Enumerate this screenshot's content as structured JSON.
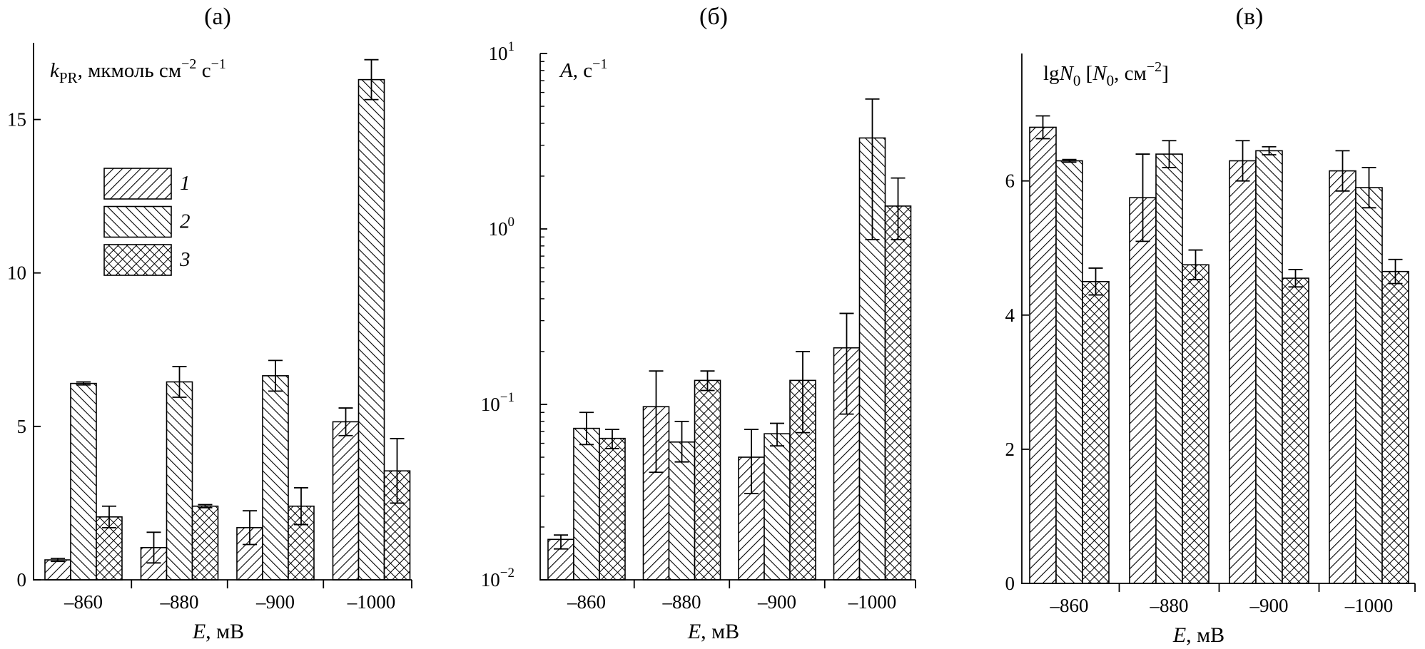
{
  "chart_data": [
    {
      "type": "bar",
      "panel_label": "(а)",
      "title": "",
      "ylabel": "kPR, мкмоль см−2 с−1",
      "ylabel_parts": {
        "k": "k",
        "sub": "PR",
        "rest": ", мкмоль см",
        "exp1": "−2",
        "mid": " с",
        "exp2": "−1"
      },
      "xlabel": "E, мВ",
      "xlabel_parts": {
        "var": "E",
        "rest": ", мВ"
      },
      "categories": [
        "–860",
        "–880",
        "–900",
        "–1000"
      ],
      "ylim": [
        0,
        17.5
      ],
      "yscale": "linear",
      "yticks": [
        0,
        5,
        10,
        15
      ],
      "ytick_labels": [
        "0",
        "5",
        "10",
        "15"
      ],
      "legend": {
        "position": "upper-left",
        "entries": [
          "1",
          "2",
          "3"
        ]
      },
      "series": [
        {
          "name": "1",
          "pattern": "hatch-right",
          "values": [
            0.65,
            1.05,
            1.7,
            5.15
          ],
          "errors": [
            0.05,
            0.5,
            0.55,
            0.45
          ]
        },
        {
          "name": "2",
          "pattern": "hatch-left",
          "values": [
            6.4,
            6.45,
            6.65,
            16.3
          ],
          "errors": [
            0.05,
            0.5,
            0.5,
            0.65
          ]
        },
        {
          "name": "3",
          "pattern": "crosshatch",
          "values": [
            2.05,
            2.4,
            2.4,
            3.55
          ],
          "errors": [
            0.35,
            0.05,
            0.6,
            1.05
          ]
        }
      ]
    },
    {
      "type": "bar",
      "panel_label": "(б)",
      "title": "",
      "ylabel": "A, с−1",
      "ylabel_parts": {
        "var": "A",
        "rest": ", с",
        "exp": "−1"
      },
      "xlabel": "E, мВ",
      "xlabel_parts": {
        "var": "E",
        "rest": ", мВ"
      },
      "categories": [
        "–860",
        "–880",
        "–900",
        "–1000"
      ],
      "ylim": [
        0.01,
        10
      ],
      "yscale": "log",
      "yticks": [
        0.01,
        0.1,
        1,
        10
      ],
      "ytick_labels": [
        {
          "base": "10",
          "exp": "−2"
        },
        {
          "base": "10",
          "exp": "−1"
        },
        {
          "base": "10",
          "exp": "0"
        },
        {
          "base": "10",
          "exp": "1"
        }
      ],
      "series": [
        {
          "name": "1",
          "pattern": "hatch-right",
          "values": [
            0.017,
            0.097,
            0.05,
            0.21
          ],
          "err_high": [
            0.018,
            0.155,
            0.072,
            0.33
          ],
          "err_low": [
            0.015,
            0.041,
            0.031,
            0.088
          ]
        },
        {
          "name": "2",
          "pattern": "hatch-left",
          "values": [
            0.073,
            0.061,
            0.068,
            3.3
          ],
          "err_high": [
            0.09,
            0.08,
            0.078,
            5.5
          ],
          "err_low": [
            0.059,
            0.047,
            0.058,
            0.87
          ]
        },
        {
          "name": "3",
          "pattern": "crosshatch",
          "values": [
            0.064,
            0.137,
            0.137,
            1.35
          ],
          "err_high": [
            0.072,
            0.155,
            0.2,
            1.95
          ],
          "err_low": [
            0.056,
            0.12,
            0.069,
            0.87
          ]
        }
      ]
    },
    {
      "type": "bar",
      "panel_label": "(в)",
      "title": "",
      "ylabel": "lgN0 [N0, см−2]",
      "ylabel_parts": {
        "lg": "lg",
        "var": "N",
        "sub": "0",
        "open": " [",
        "var2": "N",
        "sub2": "0",
        "rest": ", см",
        "exp": "−2",
        "close": "]"
      },
      "xlabel": "E, мВ",
      "xlabel_parts": {
        "var": "E",
        "rest": ", мВ"
      },
      "categories": [
        "–860",
        "–880",
        "–900",
        "–1000"
      ],
      "ylim": [
        0,
        7.9
      ],
      "yscale": "linear",
      "yticks": [
        0,
        2,
        4,
        6
      ],
      "ytick_labels": [
        "0",
        "2",
        "4",
        "6"
      ],
      "series": [
        {
          "name": "1",
          "pattern": "hatch-right",
          "values": [
            6.8,
            5.75,
            6.3,
            6.15
          ],
          "errors": [
            0.17,
            0.65,
            0.3,
            0.3
          ]
        },
        {
          "name": "2",
          "pattern": "hatch-left",
          "values": [
            6.3,
            6.4,
            6.45,
            5.9
          ],
          "errors": [
            0.02,
            0.2,
            0.06,
            0.3
          ]
        },
        {
          "name": "3",
          "pattern": "crosshatch",
          "values": [
            4.5,
            4.75,
            4.55,
            4.65
          ],
          "errors": [
            0.2,
            0.22,
            0.13,
            0.18
          ]
        }
      ]
    }
  ]
}
